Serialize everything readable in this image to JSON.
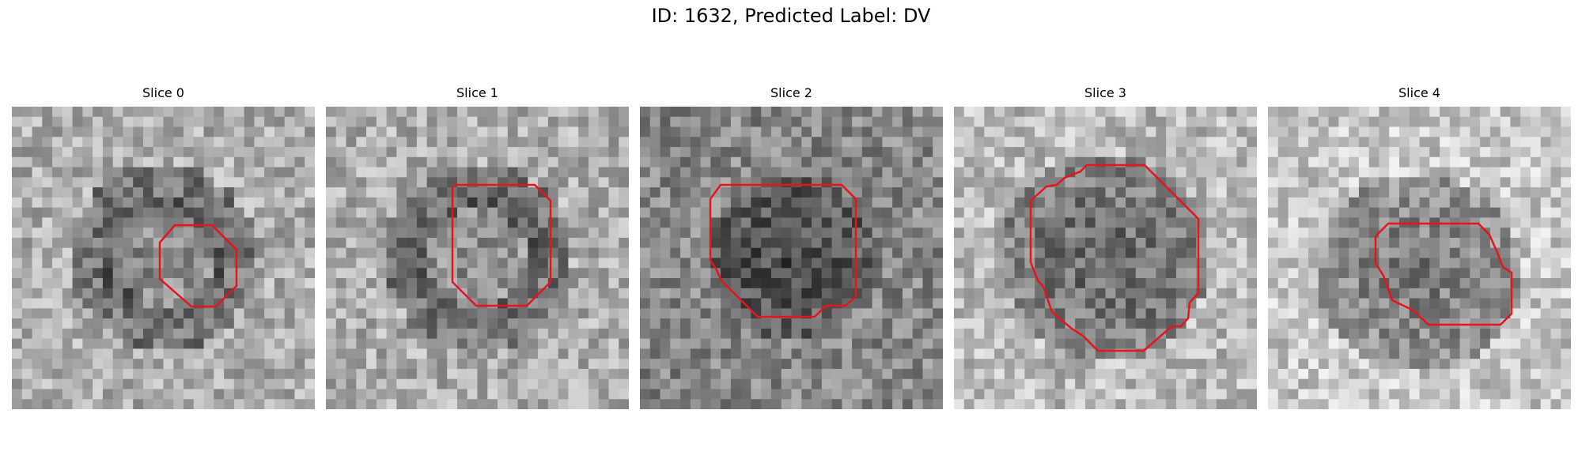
{
  "figure": {
    "title": "ID: 1632, Predicted Label: DV"
  },
  "contour_color": "#e8141b",
  "slices": [
    {
      "label": "Slice 0",
      "seed": 11,
      "darkness": 0.1,
      "blob": 0.35,
      "ring": true
    },
    {
      "label": "Slice 1",
      "seed": 23,
      "darkness": 0.1,
      "blob": 0.3,
      "ring": true
    },
    {
      "label": "Slice 2",
      "seed": 37,
      "darkness": 0.25,
      "blob": 0.55,
      "ring": false
    },
    {
      "label": "Slice 3",
      "seed": 41,
      "darkness": 0.05,
      "blob": 0.75,
      "ring": false
    },
    {
      "label": "Slice 4",
      "seed": 53,
      "darkness": 0.0,
      "blob": 0.7,
      "ring": false
    }
  ]
}
